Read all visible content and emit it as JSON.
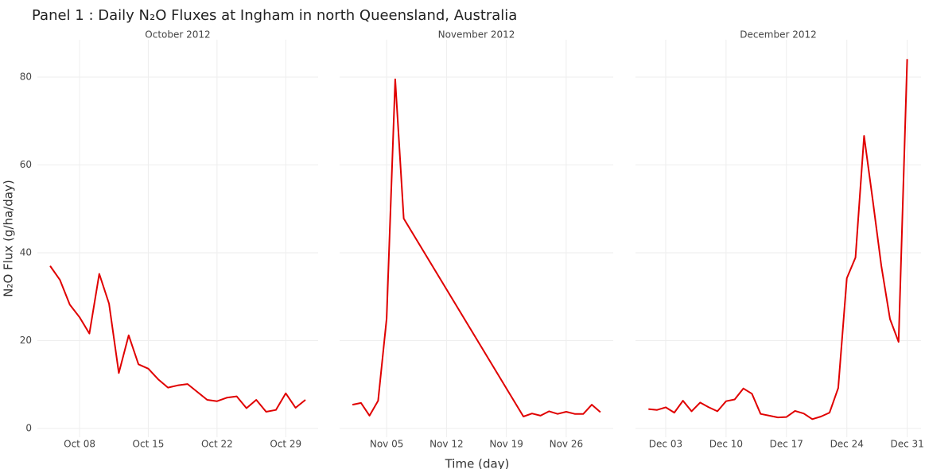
{
  "chart_data": {
    "type": "line",
    "title": "Panel 1 : Daily N₂O Fluxes at Ingham in north Queensland, Australia",
    "xlabel": "Time (day)",
    "ylabel": "N₂O Flux (g/ha/day)",
    "ylim": [
      -2,
      88.5
    ],
    "yticks": [
      0,
      20,
      40,
      60,
      80
    ],
    "grid": true,
    "color": "#e00000",
    "panels": [
      {
        "subtitle": "October 2012",
        "x": [
          5,
          6,
          7,
          8,
          9,
          10,
          11,
          12,
          13,
          14,
          15,
          16,
          17,
          18,
          19,
          20,
          21,
          22,
          23,
          24,
          25,
          26,
          27,
          28,
          29,
          30,
          31
        ],
        "values": [
          37.0,
          33.8,
          28.2,
          25.3,
          21.6,
          35.2,
          28.4,
          12.6,
          21.2,
          14.6,
          13.6,
          11.2,
          9.3,
          9.8,
          10.1,
          8.3,
          6.5,
          6.2,
          7.0,
          7.3,
          4.6,
          6.5,
          3.8,
          4.2,
          8.0,
          4.7,
          6.5
        ],
        "xlim": [
          3.7,
          32.3
        ],
        "xticks": [
          {
            "value": 8,
            "label": "Oct 08"
          },
          {
            "value": 15,
            "label": "Oct 15"
          },
          {
            "value": 22,
            "label": "Oct 22"
          },
          {
            "value": 29,
            "label": "Oct 29"
          }
        ]
      },
      {
        "subtitle": "November 2012",
        "x": [
          1,
          2,
          3,
          4,
          5,
          6,
          7,
          21,
          22,
          23,
          24,
          25,
          26,
          27,
          28,
          29,
          30
        ],
        "values": [
          5.4,
          5.8,
          2.9,
          6.3,
          25.0,
          79.5,
          47.8,
          2.7,
          3.4,
          2.9,
          3.9,
          3.3,
          3.8,
          3.3,
          3.3,
          5.4,
          3.7
        ],
        "xlim": [
          -0.5,
          31.5
        ],
        "xticks": [
          {
            "value": 5,
            "label": "Nov 05"
          },
          {
            "value": 12,
            "label": "Nov 12"
          },
          {
            "value": 19,
            "label": "Nov 19"
          },
          {
            "value": 26,
            "label": "Nov 26"
          }
        ]
      },
      {
        "subtitle": "December 2012",
        "x": [
          1,
          2,
          3,
          4,
          5,
          6,
          7,
          8,
          9,
          10,
          11,
          12,
          13,
          14,
          15,
          16,
          17,
          18,
          19,
          20,
          21,
          22,
          23,
          24,
          25,
          26,
          27,
          28,
          29,
          30,
          31
        ],
        "values": [
          4.4,
          4.2,
          4.8,
          3.6,
          6.3,
          3.9,
          5.9,
          4.8,
          3.9,
          6.2,
          6.6,
          9.1,
          7.9,
          3.3,
          2.9,
          2.5,
          2.6,
          4.0,
          3.4,
          2.1,
          2.7,
          3.6,
          9.2,
          34.2,
          38.9,
          66.6,
          52.0,
          37.0,
          24.9,
          19.7,
          84.1
        ],
        "xlim": [
          -0.5,
          32.6
        ],
        "xticks": [
          {
            "value": 3,
            "label": "Dec 03"
          },
          {
            "value": 10,
            "label": "Dec 10"
          },
          {
            "value": 17,
            "label": "Dec 17"
          },
          {
            "value": 24,
            "label": "Dec 24"
          },
          {
            "value": 31,
            "label": "Dec 31"
          }
        ]
      }
    ]
  }
}
